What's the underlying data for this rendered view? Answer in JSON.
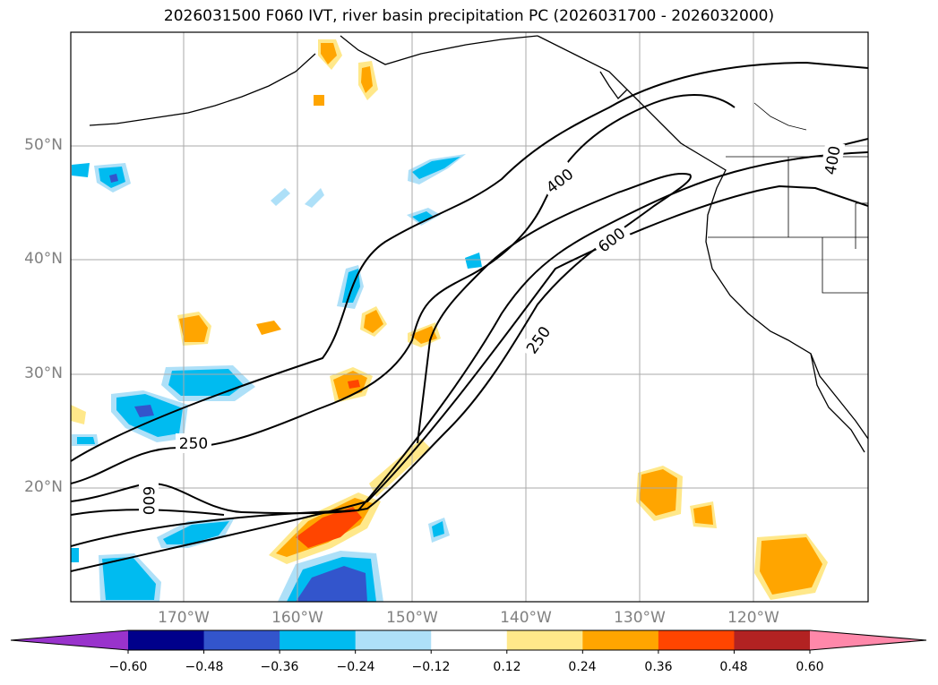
{
  "title": "2026031500 F060 IVT, river basin precipitation PC (2026031700 - 2026032000)",
  "lat_labels": [
    "50°N",
    "40°N",
    "30°N",
    "20°N"
  ],
  "lon_labels": [
    "170°W",
    "160°W",
    "150°W",
    "140°W",
    "130°W",
    "120°W"
  ],
  "contour_labels": [
    "400",
    "600",
    "250",
    "250",
    "600",
    "400"
  ],
  "colorbar": {
    "ticks": [
      "−0.60",
      "−0.48",
      "−0.36",
      "−0.24",
      "−0.12",
      "0.12",
      "0.24",
      "0.36",
      "0.48",
      "0.60"
    ],
    "colors": [
      "#9933cc",
      "#00008b",
      "#3355cc",
      "#00bbf0",
      "#aee0f8",
      "#ffffff",
      "#ffe88a",
      "#ffa500",
      "#ff4500",
      "#b22222",
      "#ff88aa"
    ]
  },
  "colors": {
    "negative_light": "#aee0f8",
    "negative_mid": "#00bbf0",
    "negative_dark": "#3355cc",
    "positive_light": "#ffe88a",
    "positive_mid": "#ffa500",
    "positive_dark": "#ff4500",
    "grid": "#aaaaaa"
  }
}
